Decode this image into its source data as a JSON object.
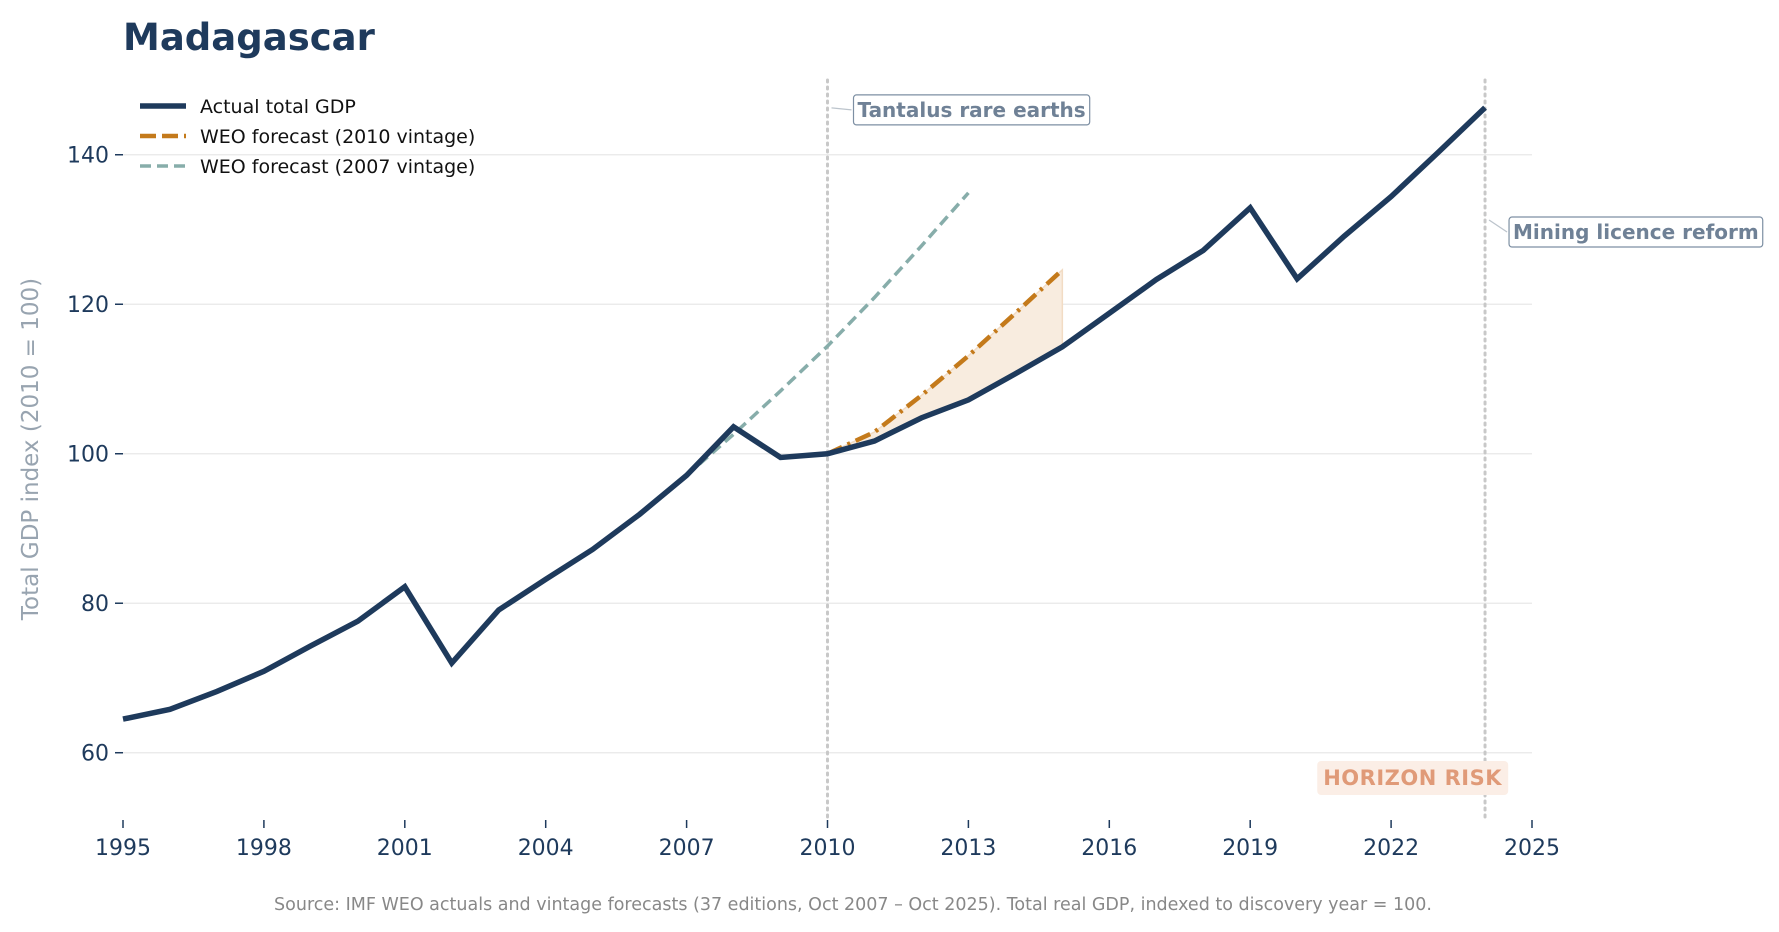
{
  "colors": {
    "actual": "#1e3a5c",
    "forecast_2010": "#c47a1b",
    "forecast_2010_fill": "#f8ecdf",
    "forecast_2007": "#87adaa",
    "grid": "#e8e8e8",
    "vline": "#c8c8c8",
    "tick_text": "#1e3a5c",
    "ylabel_text": "#98a4b0",
    "annot_text": "#6f8196",
    "annot_border": "#7d8fa3",
    "risk_text": "#e09a78",
    "risk_bg": "#fbeee6",
    "source_text": "#888888",
    "legend_text": "#111111"
  },
  "chart_data": {
    "type": "line",
    "title": "Madagascar",
    "ylabel": "Total GDP index (2010 = 100)",
    "xlim": [
      1995,
      2025
    ],
    "ylim": [
      51,
      150
    ],
    "x_ticks": [
      1995,
      1998,
      2001,
      2004,
      2007,
      2010,
      2013,
      2016,
      2019,
      2022,
      2025
    ],
    "y_ticks": [
      60,
      80,
      100,
      120,
      140
    ],
    "grid": "horizontal",
    "legend_position": "top-left",
    "series": [
      {
        "name": "Actual total GDP",
        "style": "solid",
        "x": [
          1995,
          1996,
          1997,
          1998,
          1999,
          2000,
          2001,
          2002,
          2003,
          2004,
          2005,
          2006,
          2007,
          2008,
          2009,
          2010,
          2011,
          2012,
          2013,
          2014,
          2015,
          2016,
          2017,
          2018,
          2019,
          2020,
          2021,
          2022,
          2023,
          2024
        ],
        "y": [
          64.5,
          65.8,
          68.2,
          70.9,
          74.3,
          77.6,
          82.2,
          72.0,
          79.1,
          83.2,
          87.2,
          91.9,
          97.1,
          103.6,
          99.5,
          100.0,
          101.7,
          104.8,
          107.2,
          110.7,
          114.3,
          118.8,
          123.3,
          127.2,
          132.9,
          123.4,
          129.1,
          134.4,
          140.3,
          146.3
        ]
      },
      {
        "name": "WEO forecast (2010 vintage)",
        "style": "dashdot",
        "x": [
          2010,
          2011,
          2012,
          2013,
          2014,
          2015
        ],
        "y": [
          100.0,
          102.9,
          107.8,
          113.1,
          118.8,
          124.6
        ]
      },
      {
        "name": "WEO forecast (2007 vintage)",
        "style": "dashed",
        "x": [
          2007,
          2008,
          2009,
          2010,
          2011,
          2012,
          2013
        ],
        "y": [
          97.1,
          102.6,
          108.4,
          114.4,
          120.9,
          127.8,
          134.9
        ]
      }
    ],
    "shaded_region": {
      "between": [
        "WEO forecast (2010 vintage)",
        "Actual total GDP"
      ],
      "x_range": [
        2010,
        2015
      ]
    },
    "annotations": [
      {
        "x": 2010,
        "y": 146,
        "text": "Tantalus rare earths"
      },
      {
        "x": 2024,
        "y": 131,
        "text": "Mining licence reform"
      }
    ],
    "corner_label": "HORIZON RISK",
    "source": "Source: IMF WEO actuals and vintage forecasts (37 editions, Oct 2007 – Oct 2025). Total real GDP, indexed to discovery year = 100."
  }
}
